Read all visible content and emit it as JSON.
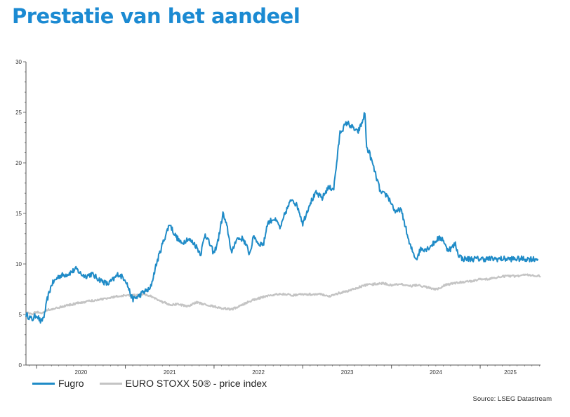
{
  "header": {
    "title": "Prestatie van het aandeel"
  },
  "colors": {
    "title": "#1b8ad2",
    "fugro": "#1f8bc7",
    "stoxx": "#c4c4c4",
    "axis": "#555555"
  },
  "source": "Source: LSEG Datastream",
  "chart_data": {
    "type": "line",
    "title": "",
    "xlabel": "",
    "ylabel": "",
    "xlim": [
      2019.88,
      2025.68
    ],
    "ylim": [
      0,
      30
    ],
    "yticks": [
      "0",
      "5",
      "10",
      "15",
      "20",
      "25",
      "30"
    ],
    "xticks": [
      "2020",
      "2021",
      "2022",
      "2023",
      "2024",
      "2025"
    ],
    "grid": false,
    "legend": "bottom-left",
    "series": [
      {
        "name": "Fugro",
        "color": "#1f8bc7",
        "x": [
          2019.88,
          2019.95,
          2020.0,
          2020.05,
          2020.09,
          2020.12,
          2020.17,
          2020.25,
          2020.35,
          2020.45,
          2020.5,
          2020.55,
          2020.62,
          2020.7,
          2020.8,
          2020.87,
          2020.92,
          2021.0,
          2021.08,
          2021.15,
          2021.2,
          2021.28,
          2021.35,
          2021.42,
          2021.5,
          2021.55,
          2021.63,
          2021.7,
          2021.78,
          2021.85,
          2021.9,
          2022.0,
          2022.05,
          2022.1,
          2022.15,
          2022.2,
          2022.25,
          2022.33,
          2022.4,
          2022.45,
          2022.5,
          2022.56,
          2022.6,
          2022.67,
          2022.72,
          2022.75,
          2022.8,
          2022.88,
          2022.95,
          2023.0,
          2023.08,
          2023.15,
          2023.22,
          2023.28,
          2023.35,
          2023.42,
          2023.5,
          2023.56,
          2023.62,
          2023.67,
          2023.7,
          2023.72,
          2023.75,
          2023.8,
          2023.88,
          2023.95,
          2024.0,
          2024.05,
          2024.1,
          2024.15,
          2024.2,
          2024.25,
          2024.28,
          2024.33,
          2024.4,
          2024.47,
          2024.52,
          2024.58,
          2024.62,
          2024.67,
          2024.72,
          2024.75,
          2024.8,
          2024.88,
          2024.95,
          2025.0,
          2025.05,
          2025.12,
          2025.2,
          2025.27,
          2025.3,
          2025.35,
          2025.42,
          2025.5,
          2025.55,
          2025.6,
          2025.65
        ],
        "values": [
          5.0,
          4.5,
          5.0,
          4.2,
          5.0,
          6.5,
          8.0,
          8.8,
          9.0,
          9.5,
          9.0,
          8.8,
          9.0,
          8.5,
          8.0,
          8.5,
          9.0,
          8.5,
          6.5,
          6.8,
          7.2,
          7.5,
          10.0,
          12.0,
          14.0,
          13.0,
          12.0,
          12.5,
          12.0,
          11.0,
          13.0,
          11.0,
          12.5,
          15.0,
          13.5,
          11.0,
          12.5,
          12.5,
          11.0,
          12.8,
          12.0,
          12.0,
          14.0,
          14.5,
          14.0,
          13.5,
          15.0,
          16.5,
          15.5,
          14.0,
          16.0,
          17.0,
          16.5,
          17.5,
          17.5,
          23.0,
          24.0,
          23.5,
          23.0,
          24.0,
          25.0,
          21.5,
          21.0,
          19.5,
          17.0,
          16.8,
          16.0,
          15.0,
          15.5,
          14.0,
          12.0,
          11.0,
          10.5,
          11.5,
          11.5,
          12.0,
          12.5,
          12.5,
          11.5,
          11.5,
          12.0,
          11.0,
          10.5,
          10.5,
          10.5,
          10.5,
          10.5,
          10.5,
          10.5,
          10.5,
          10.5,
          10.5,
          10.5,
          10.5,
          10.5,
          10.5,
          10.5
        ],
        "values_note": ""
      },
      {
        "name": "EURO STOXX 50® - price index",
        "color": "#c4c4c4",
        "x": [
          2019.88,
          2019.95,
          2020.0,
          2020.05,
          2020.1,
          2020.2,
          2020.35,
          2020.5,
          2020.65,
          2020.8,
          2020.9,
          2021.0,
          2021.1,
          2021.2,
          2021.3,
          2021.4,
          2021.5,
          2021.6,
          2021.7,
          2021.8,
          2021.9,
          2022.0,
          2022.1,
          2022.2,
          2022.3,
          2022.4,
          2022.5,
          2022.6,
          2022.7,
          2022.8,
          2022.9,
          2023.0,
          2023.1,
          2023.2,
          2023.3,
          2023.4,
          2023.5,
          2023.6,
          2023.7,
          2023.8,
          2023.9,
          2024.0,
          2024.1,
          2024.2,
          2024.3,
          2024.4,
          2024.5,
          2024.55,
          2024.6,
          2024.7,
          2024.8,
          2024.9,
          2025.0,
          2025.1,
          2025.2,
          2025.3,
          2025.4,
          2025.5,
          2025.6,
          2025.68
        ],
        "values": [
          5.2,
          5.0,
          5.3,
          5.1,
          5.4,
          5.6,
          5.9,
          6.2,
          6.4,
          6.6,
          6.8,
          6.9,
          6.9,
          7.0,
          6.8,
          6.3,
          6.0,
          6.0,
          5.8,
          6.2,
          6.0,
          5.8,
          5.6,
          5.5,
          5.9,
          6.3,
          6.6,
          6.8,
          7.0,
          7.0,
          6.9,
          7.0,
          7.0,
          7.0,
          6.8,
          7.1,
          7.3,
          7.6,
          7.9,
          8.0,
          8.1,
          7.9,
          8.0,
          7.8,
          7.9,
          7.7,
          7.5,
          7.6,
          7.9,
          8.1,
          8.2,
          8.3,
          8.5,
          8.5,
          8.7,
          8.8,
          8.8,
          8.9,
          8.9,
          8.8
        ]
      }
    ]
  }
}
